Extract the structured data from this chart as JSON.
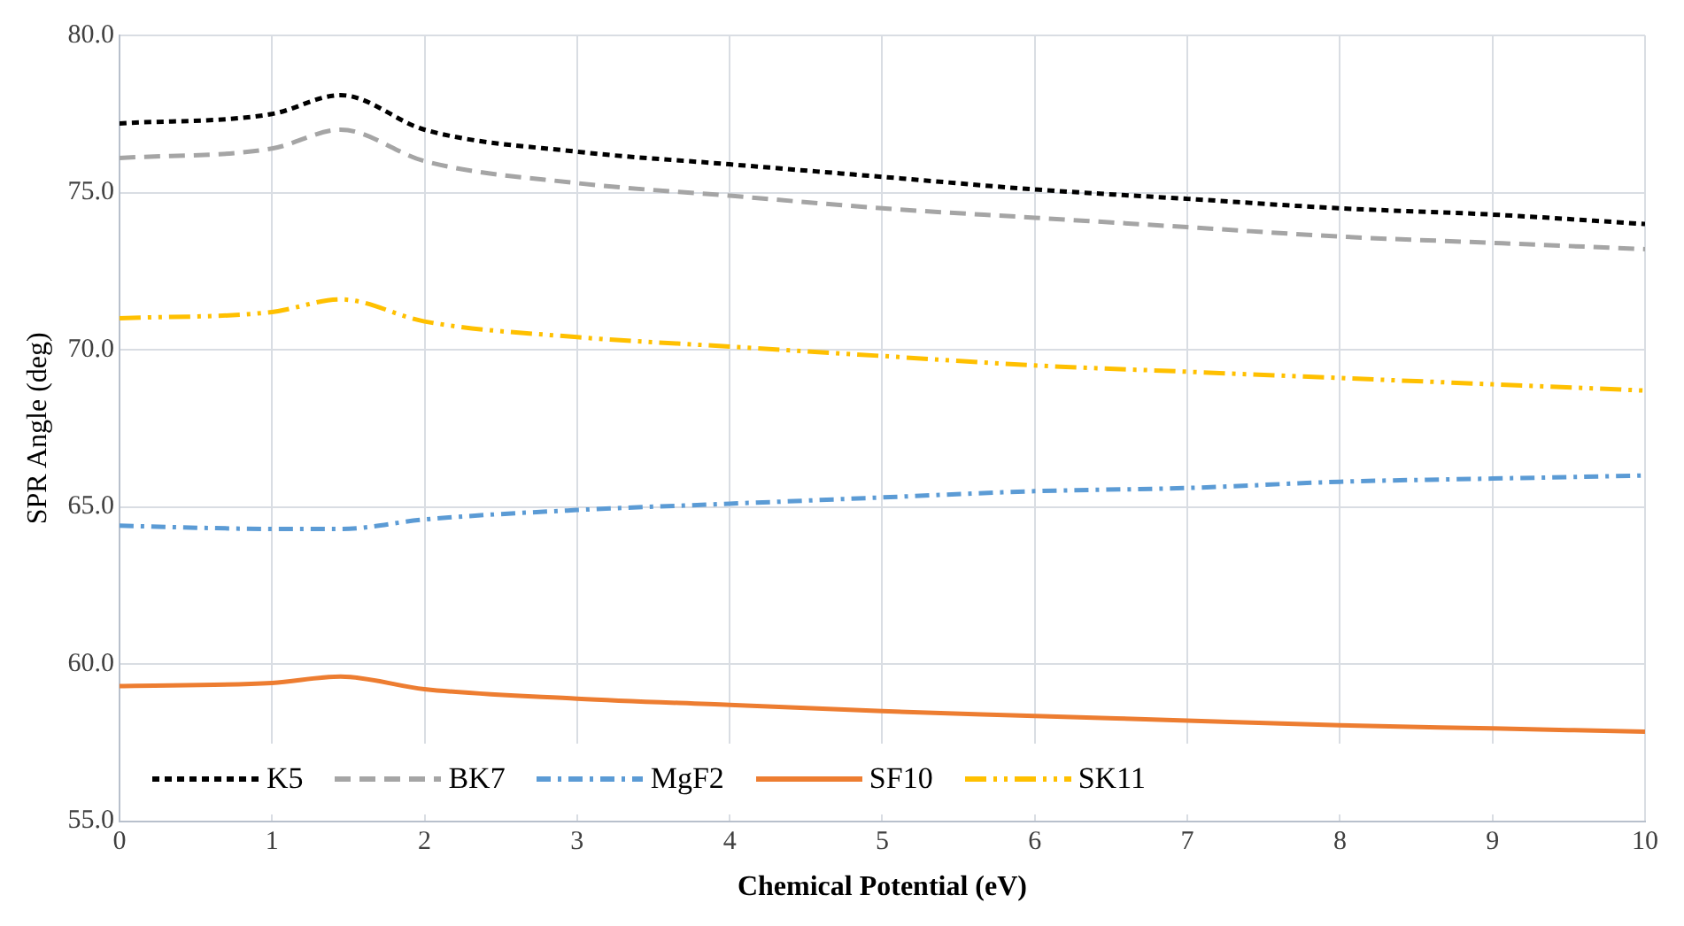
{
  "chart_data": {
    "type": "line",
    "xlabel": "Chemical Potential (eV)",
    "ylabel": "SPR Angle (deg)",
    "x": [
      0,
      1,
      1.45,
      2,
      3,
      4,
      5,
      6,
      7,
      8,
      9,
      10
    ],
    "xlim": [
      0,
      10
    ],
    "xticks": [
      0,
      1,
      2,
      3,
      4,
      5,
      6,
      7,
      8,
      9,
      10
    ],
    "ylim": [
      55,
      80
    ],
    "yticks": [
      {
        "value": 55,
        "label": "55.0"
      },
      {
        "value": 60,
        "label": "60.0"
      },
      {
        "value": 65,
        "label": "65.0"
      },
      {
        "value": 70,
        "label": "70.0"
      },
      {
        "value": 75,
        "label": "75.0"
      },
      {
        "value": 80,
        "label": "80.0"
      }
    ],
    "grid": true,
    "legend": "bottom",
    "marker": "none",
    "series": [
      {
        "name": "K5",
        "color": "#000000",
        "line_style": "dotted",
        "values": [
          77.2,
          77.5,
          78.1,
          77.0,
          76.3,
          75.9,
          75.5,
          75.1,
          74.8,
          74.5,
          74.3,
          74.0
        ]
      },
      {
        "name": "BK7",
        "color": "#a5a5a5",
        "line_style": "dashed",
        "values": [
          76.1,
          76.4,
          77.0,
          76.0,
          75.3,
          74.9,
          74.5,
          74.2,
          73.9,
          73.6,
          73.4,
          73.2
        ]
      },
      {
        "name": "MgF2",
        "color": "#5b9bd5",
        "line_style": "dashdot",
        "values": [
          64.4,
          64.3,
          64.3,
          64.6,
          64.9,
          65.1,
          65.3,
          65.5,
          65.6,
          65.8,
          65.9,
          66.0
        ]
      },
      {
        "name": "SF10",
        "color": "#ed7d31",
        "line_style": "solid",
        "values": [
          59.3,
          59.4,
          59.6,
          59.2,
          58.9,
          58.7,
          58.5,
          58.35,
          58.2,
          58.05,
          57.95,
          57.85
        ]
      },
      {
        "name": "SK11",
        "color": "#ffc000",
        "line_style": "dashdotdot",
        "values": [
          71.0,
          71.2,
          71.6,
          70.9,
          70.4,
          70.1,
          69.8,
          69.5,
          69.3,
          69.1,
          68.9,
          68.7
        ]
      }
    ]
  }
}
